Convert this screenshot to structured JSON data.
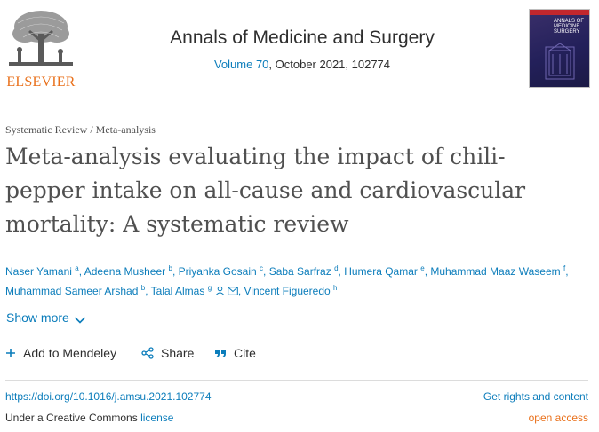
{
  "publisher": {
    "logo_text": "ELSEVIER",
    "brand_color": "#e9711c"
  },
  "journal": {
    "title": "Annals of Medicine and Surgery",
    "volume_link": "Volume 70",
    "issue_info": ", October 2021, 102774",
    "cover": {
      "line1": "ANNALS OF",
      "line2": "MEDICINE",
      "line3": "SURGERY"
    }
  },
  "article": {
    "type": "Systematic Review / Meta-analysis",
    "title_line1": "Meta-analysis evaluating the impact of chili-",
    "title_line2": "pepper intake on all-cause and cardiovascular",
    "title_line3": "mortality: A systematic review"
  },
  "authors": [
    {
      "name": "Naser Yamani",
      "sup": "a"
    },
    {
      "name": "Adeena Musheer",
      "sup": "b"
    },
    {
      "name": "Priyanka Gosain",
      "sup": "c"
    },
    {
      "name": "Saba Sarfraz",
      "sup": "d"
    },
    {
      "name": "Humera Qamar",
      "sup": "e"
    },
    {
      "name": "Muhammad Maaz Waseem",
      "sup": "f"
    },
    {
      "name": "Muhammad Sameer Arshad",
      "sup": "b"
    },
    {
      "name": "Talal Almas",
      "sup": "g"
    },
    {
      "name": "Vincent Figueredo",
      "sup": "h"
    }
  ],
  "ui": {
    "show_more": "Show more",
    "add_to_mendeley": "Add to Mendeley",
    "share": "Share",
    "cite": "Cite",
    "doi": "https://doi.org/10.1016/j.amsu.2021.102774",
    "rights": "Get rights and content",
    "license_prefix": "Under a Creative Commons ",
    "license_link": "license",
    "open_access": "open access"
  },
  "colors": {
    "link": "#0c7dbb",
    "text": "#2e2e2e",
    "title": "#505050",
    "open_access": "#e9711c"
  },
  "icons": [
    "elsevier-tree-logo",
    "journal-cover",
    "user-icon",
    "mail-icon",
    "chevron-down-icon",
    "plus-icon",
    "share-icon",
    "quote-icon"
  ]
}
